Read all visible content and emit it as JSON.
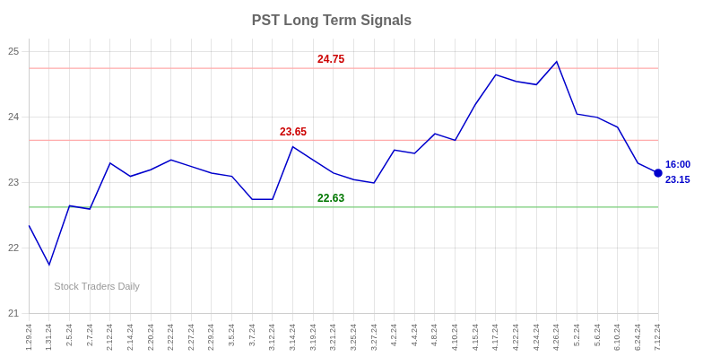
{
  "chart_data": {
    "type": "line",
    "title": "PST Long Term Signals",
    "categories": [
      "1.29.24",
      "1.31.24",
      "2.5.24",
      "2.7.24",
      "2.12.24",
      "2.14.24",
      "2.20.24",
      "2.22.24",
      "2.27.24",
      "2.29.24",
      "3.5.24",
      "3.7.24",
      "3.12.24",
      "3.14.24",
      "3.19.24",
      "3.21.24",
      "3.25.24",
      "3.27.24",
      "4.2.24",
      "4.4.24",
      "4.8.24",
      "4.10.24",
      "4.15.24",
      "4.17.24",
      "4.22.24",
      "4.24.24",
      "4.26.24",
      "5.2.24",
      "5.6.24",
      "6.10.24",
      "6.24.24",
      "7.12.24"
    ],
    "values": [
      22.35,
      21.75,
      22.65,
      22.6,
      23.3,
      23.1,
      23.2,
      23.35,
      23.25,
      23.15,
      23.1,
      22.75,
      22.75,
      23.55,
      23.35,
      23.15,
      23.05,
      23.0,
      23.5,
      23.45,
      23.75,
      23.65,
      24.2,
      24.65,
      24.55,
      24.5,
      24.85,
      24.05,
      24.0,
      23.85,
      23.3,
      23.15
    ],
    "color": "#0000cc",
    "ylim": [
      21,
      25.2
    ],
    "yticks": [
      21,
      22,
      23,
      24,
      25
    ],
    "grid": true,
    "hlines": [
      {
        "value": 24.75,
        "label": "24.75",
        "color": "#ffaaaa",
        "label_color": "#cc0000"
      },
      {
        "value": 23.65,
        "label": "23.65",
        "color": "#ffaaaa",
        "label_color": "#cc0000"
      },
      {
        "value": 22.63,
        "label": "22.63",
        "color": "#77cc77",
        "label_color": "#007700"
      }
    ],
    "last_point_labels": [
      "16:00",
      "23.15"
    ],
    "watermark": "Stock Traders Daily"
  }
}
